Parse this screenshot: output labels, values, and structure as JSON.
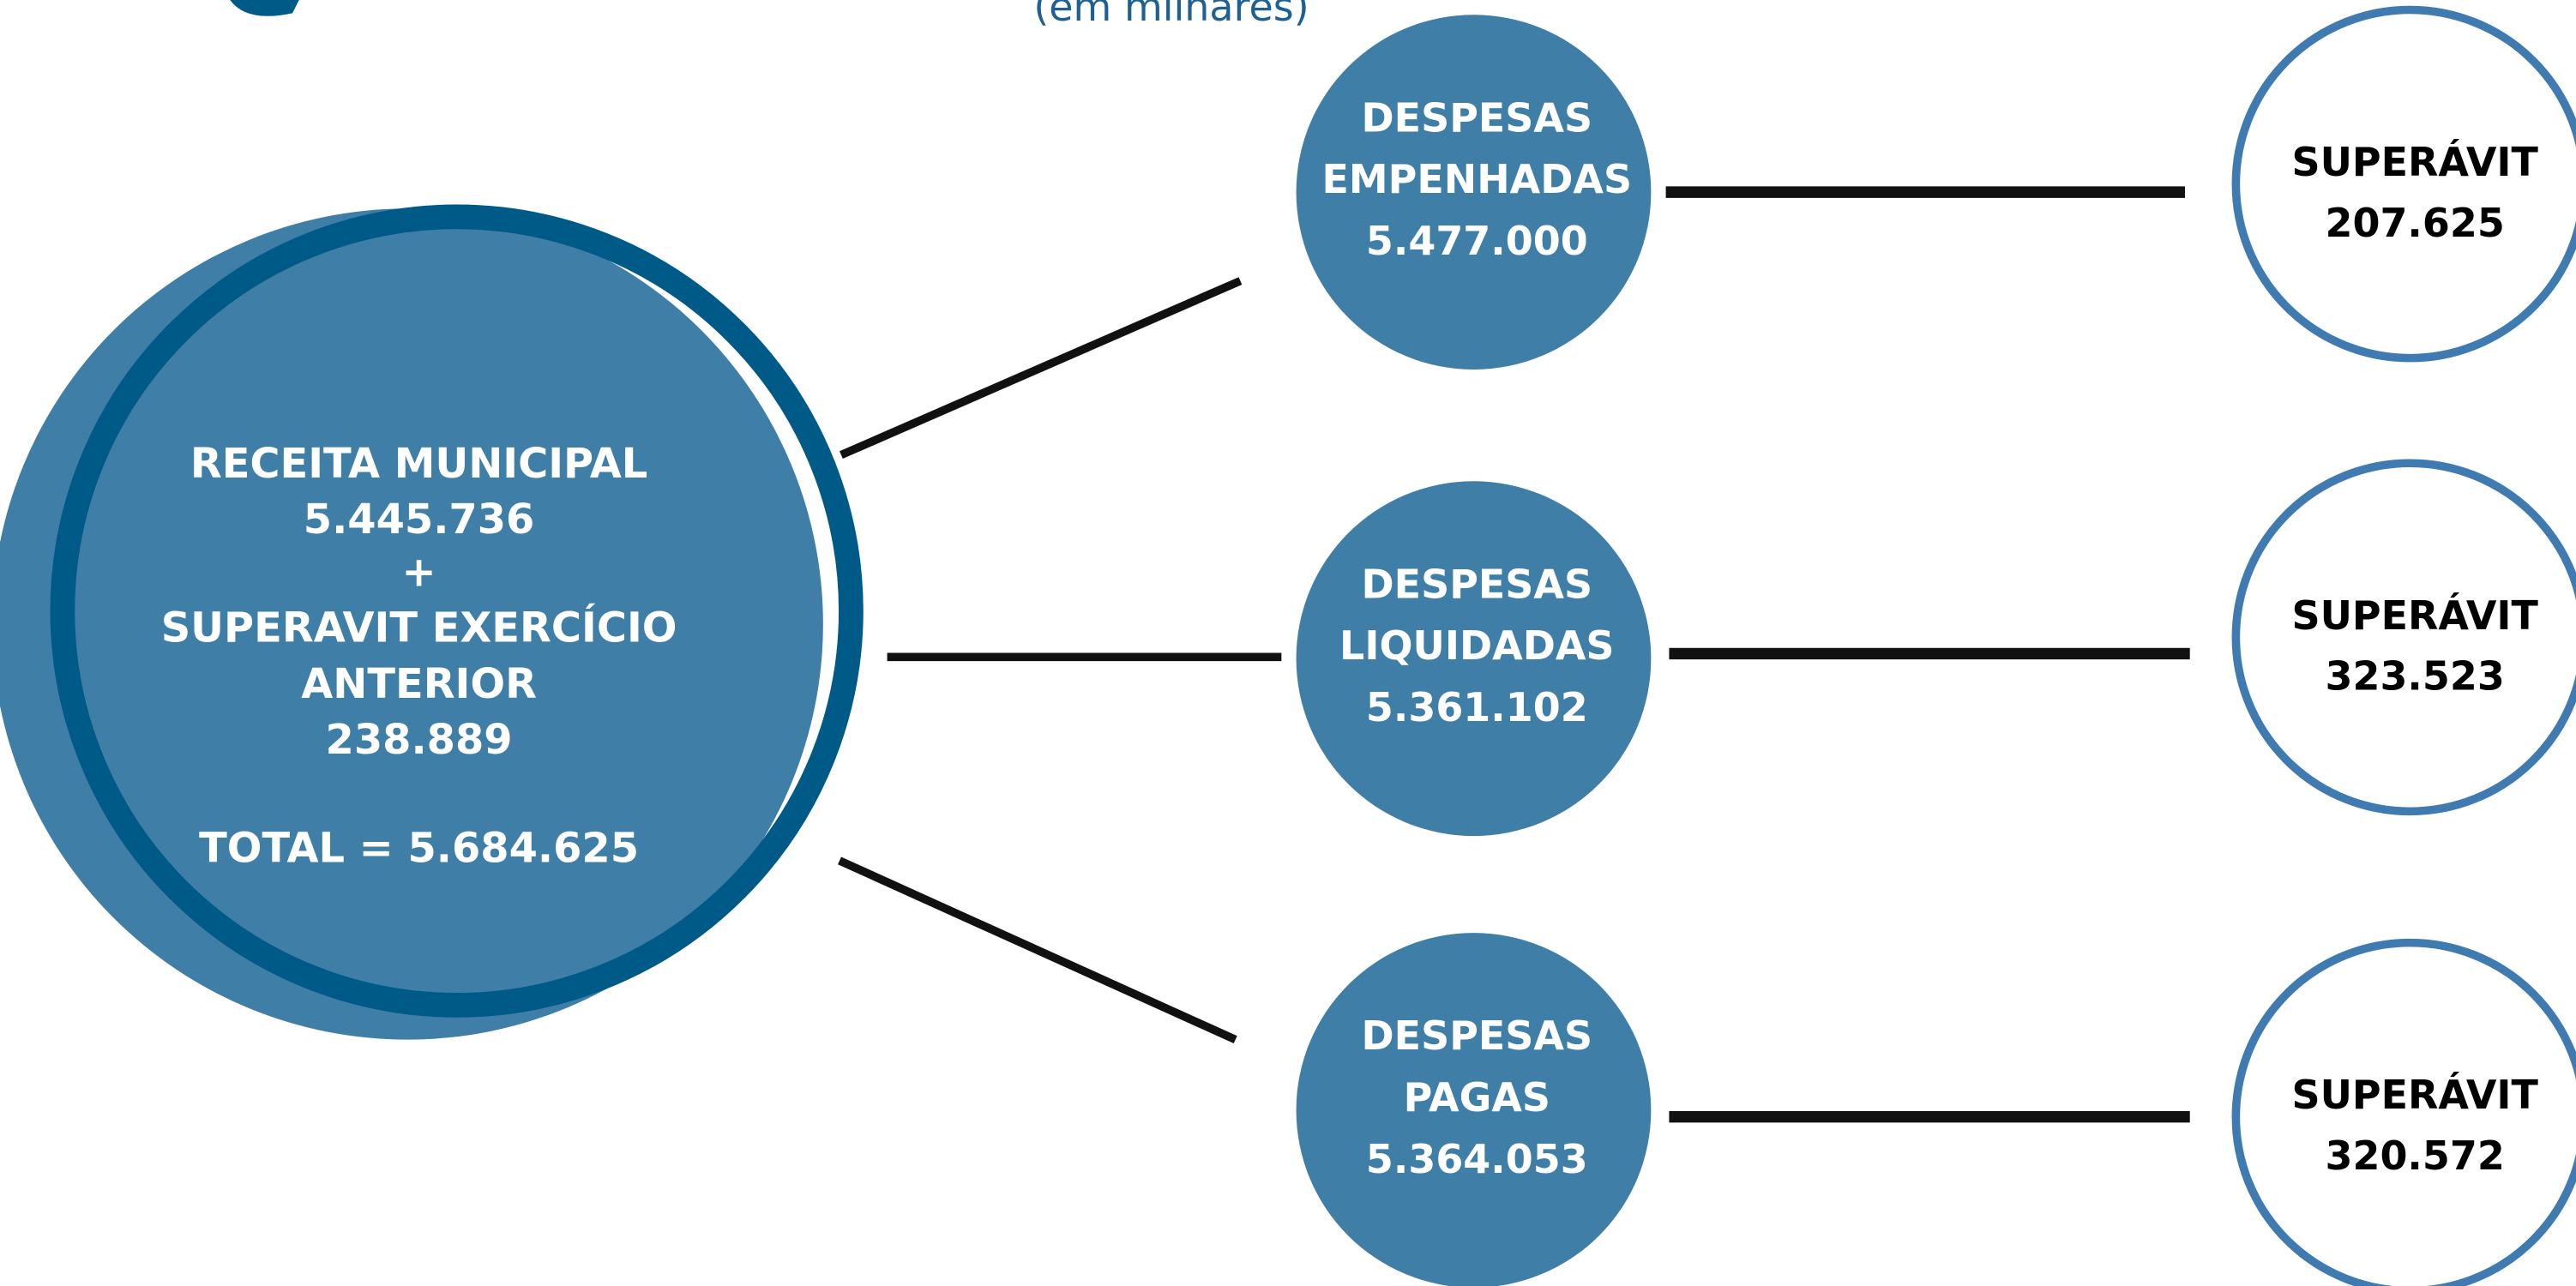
{
  "subtitle": "(em milhares)",
  "source": {
    "lines": [
      "RECEITA MUNICIPAL",
      "5.445.736",
      "+",
      "SUPERAVIT EXERCÍCIO",
      "ANTERIOR",
      "238.889",
      "TOTAL = 5.684.625"
    ]
  },
  "expenses": [
    {
      "lines": [
        "DESPESAS",
        "EMPENHADAS",
        "5.477.000"
      ]
    },
    {
      "lines": [
        "DESPESAS",
        "LIQUIDADAS",
        "5.361.102"
      ]
    },
    {
      "lines": [
        "DESPESAS",
        "PAGAS",
        "5.364.053"
      ]
    }
  ],
  "surplus": [
    {
      "lines": [
        "SUPERÁVIT",
        "207.625"
      ]
    },
    {
      "lines": [
        "SUPERÁVIT",
        "323.523"
      ]
    },
    {
      "lines": [
        "SUPERÁVIT",
        "320.572"
      ]
    }
  ]
}
